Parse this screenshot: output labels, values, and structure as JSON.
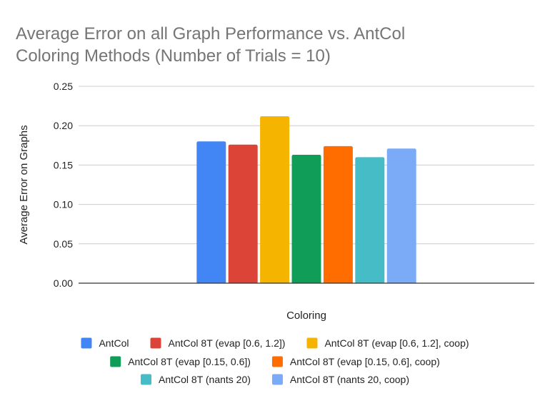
{
  "chart_data": {
    "type": "bar",
    "title": "Average Error on all Graph Performance vs. AntCol Coloring Methods (Number of Trials = 10)",
    "title_lines": [
      "Average Error on all Graph Performance vs. AntCol",
      "Coloring Methods (Number of Trials = 10)"
    ],
    "xlabel": "Coloring",
    "ylabel": "Average Error on Graphs",
    "ylim": [
      0,
      0.25
    ],
    "yticks": [
      "0.00",
      "0.05",
      "0.10",
      "0.15",
      "0.20",
      "0.25"
    ],
    "grid": true,
    "legend_position": "bottom",
    "series": [
      {
        "name": "AntCol",
        "value": 0.18,
        "color": "#4285F4"
      },
      {
        "name": "AntCol 8T (evap [0.6, 1.2])",
        "value": 0.176,
        "color": "#DB4437"
      },
      {
        "name": "AntCol 8T (evap [0.6, 1.2], coop)",
        "value": 0.212,
        "color": "#F4B400"
      },
      {
        "name": "AntCol 8T (evap [0.15, 0.6])",
        "value": 0.163,
        "color": "#0F9D58"
      },
      {
        "name": "AntCol 8T (evap [0.15, 0.6], coop)",
        "value": 0.174,
        "color": "#FF6D01"
      },
      {
        "name": "AntCol 8T (nants 20)",
        "value": 0.16,
        "color": "#46BDC6"
      },
      {
        "name": "AntCol 8T (nants 20, coop)",
        "value": 0.171,
        "color": "#7BAAF7"
      }
    ]
  }
}
